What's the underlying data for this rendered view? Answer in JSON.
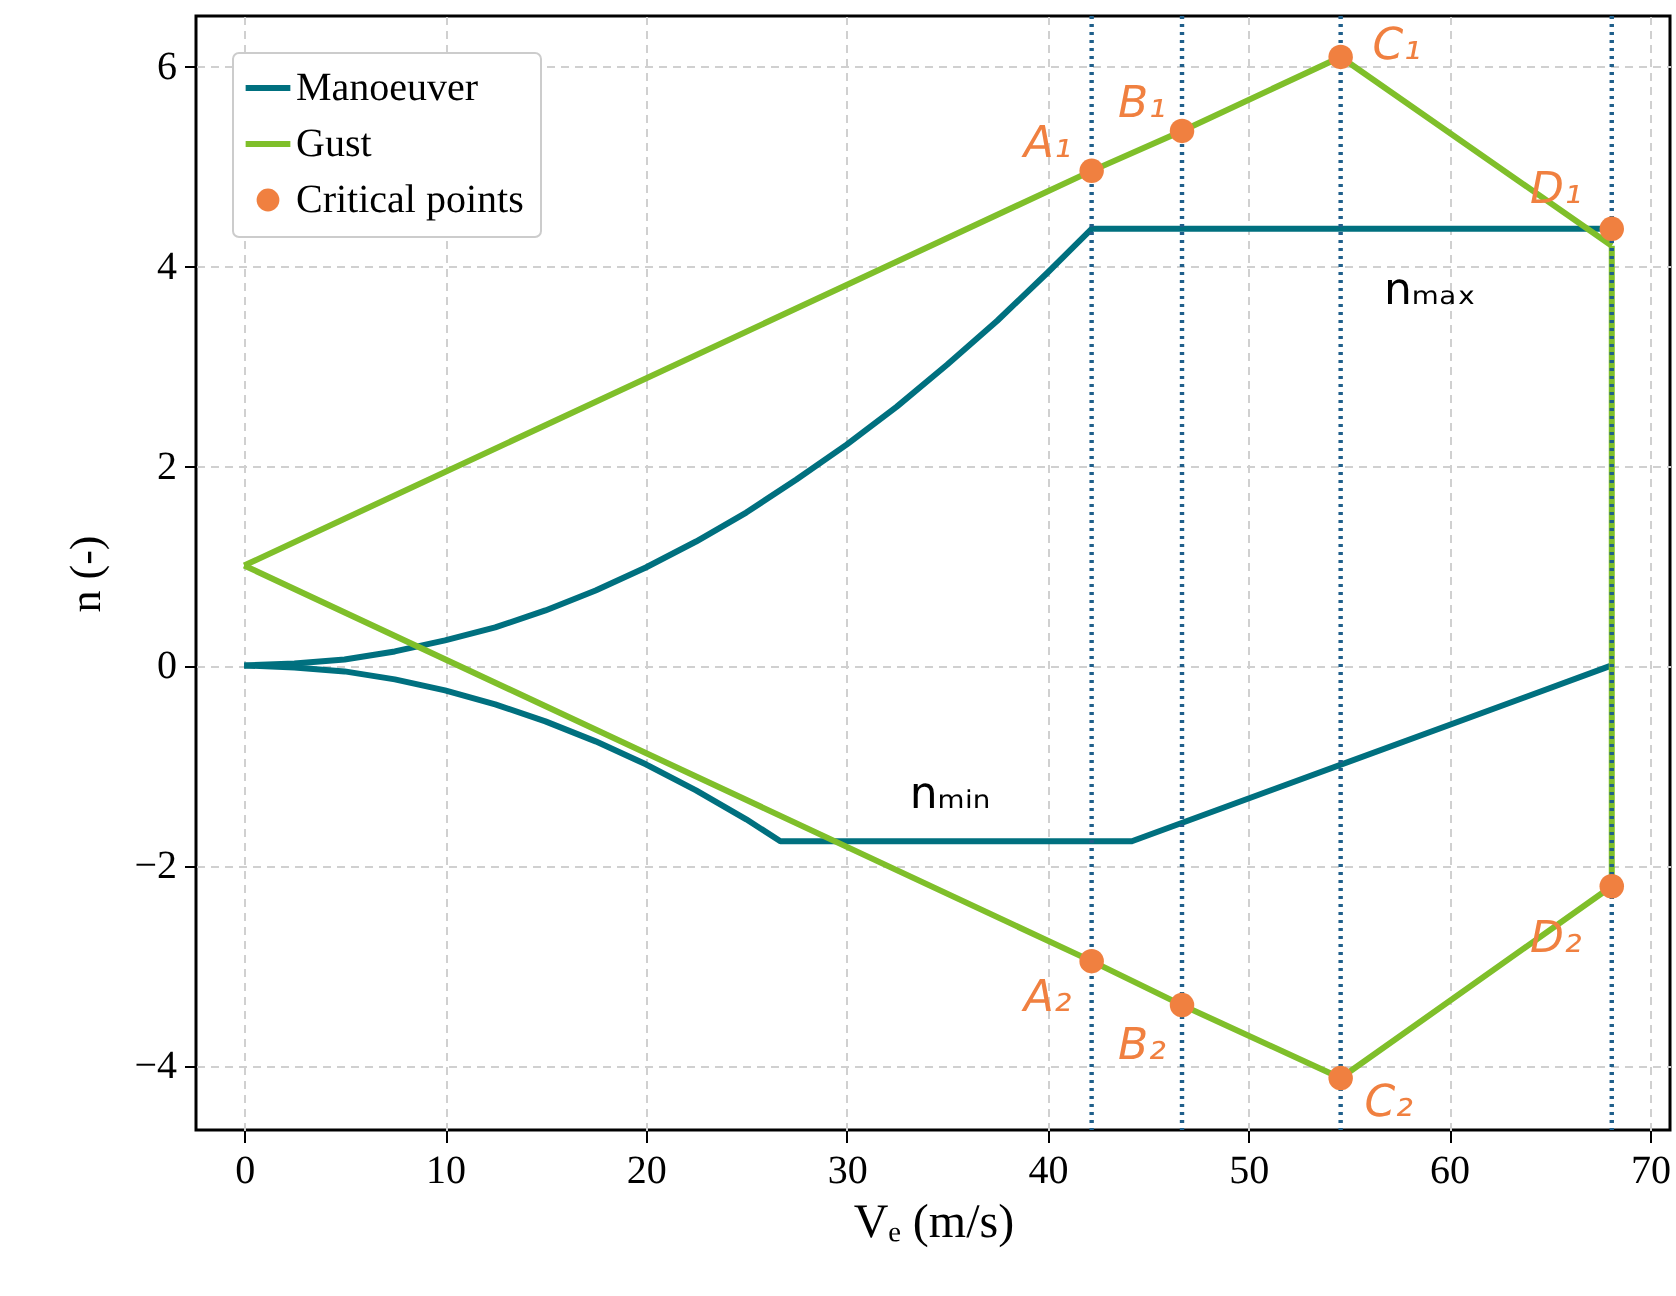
{
  "chart_data": {
    "type": "line",
    "xlabel": "Vₑ (m/s)",
    "ylabel": "n (-)",
    "xlim": [
      -2.4,
      71.0
    ],
    "ylim": [
      -4.65,
      6.5
    ],
    "xticks": [
      0,
      10,
      20,
      30,
      40,
      50,
      60,
      70
    ],
    "yticks": [
      -4,
      -2,
      0,
      2,
      4,
      6
    ],
    "grid": true,
    "legend": "top left",
    "line_style": "solid",
    "series": [
      {
        "name": "Manoeuver",
        "color": "#00707f",
        "x": [
          0,
          2.5,
          5,
          7.5,
          10,
          12.5,
          15,
          17.5,
          20,
          22.5,
          25,
          27.5,
          30,
          32.5,
          35,
          37.5,
          40,
          42.2,
          68.1
        ],
        "values": [
          0,
          0.02,
          0.06,
          0.14,
          0.25,
          0.38,
          0.55,
          0.75,
          0.98,
          1.24,
          1.53,
          1.86,
          2.21,
          2.59,
          3.01,
          3.45,
          3.93,
          4.37,
          4.37
        ]
      },
      {
        "color": "#00707f",
        "x": [
          0,
          2.5,
          5,
          7.5,
          10,
          12.5,
          15,
          17.5,
          20,
          22.5,
          25,
          26.7,
          44.2,
          68.1
        ],
        "values": [
          0,
          -0.02,
          -0.06,
          -0.14,
          -0.25,
          -0.39,
          -0.56,
          -0.76,
          -0.99,
          -1.25,
          -1.54,
          -1.76,
          -1.76,
          0
        ]
      },
      {
        "name": "Gust",
        "color": "#7fbf2a",
        "x": [
          0,
          42.2,
          46.7,
          54.6,
          68.1
        ],
        "values": [
          1,
          4.95,
          5.35,
          6.09,
          4.2
        ]
      },
      {
        "color": "#7fbf2a",
        "x": [
          0,
          42.2,
          46.7,
          54.6,
          68.1,
          68.1
        ],
        "values": [
          1,
          -2.96,
          -3.4,
          -4.13,
          -2.21,
          4.2
        ]
      },
      {
        "name": "Critical points",
        "type": "scatter",
        "marker": "circle",
        "color": "#f08040",
        "x": [
          42.2,
          46.7,
          54.6,
          68.1,
          42.2,
          46.7,
          54.6,
          68.1
        ],
        "values": [
          4.95,
          5.35,
          6.09,
          4.37,
          -2.96,
          -3.4,
          -4.13,
          -2.21
        ]
      }
    ],
    "ref_lines": [
      {
        "axis": "x",
        "value": 42.2,
        "color": "#1f5f8b",
        "line_style": "dotted"
      },
      {
        "axis": "x",
        "value": 46.7,
        "color": "#1f5f8b",
        "line_style": "dotted"
      },
      {
        "axis": "x",
        "value": 54.6,
        "color": "#1f5f8b",
        "line_style": "dotted"
      },
      {
        "axis": "x",
        "value": 68.1,
        "color": "#1f5f8b",
        "line_style": "dotted"
      }
    ],
    "annotations": [
      {
        "text": "A₁",
        "x": 42.2,
        "y": 4.95
      },
      {
        "text": "B₁",
        "x": 46.7,
        "y": 5.35
      },
      {
        "text": "C₁",
        "x": 54.6,
        "y": 6.09
      },
      {
        "text": "D₁",
        "x": 68.1,
        "y": 4.37
      },
      {
        "text": "A₂",
        "x": 42.2,
        "y": -2.96
      },
      {
        "text": "B₂",
        "x": 46.7,
        "y": -3.4
      },
      {
        "text": "C₂",
        "x": 54.6,
        "y": -4.13
      },
      {
        "text": "D₂",
        "x": 68.1,
        "y": -2.21
      },
      "nₘₐₓ",
      "nₘᵢₙ"
    ]
  }
}
